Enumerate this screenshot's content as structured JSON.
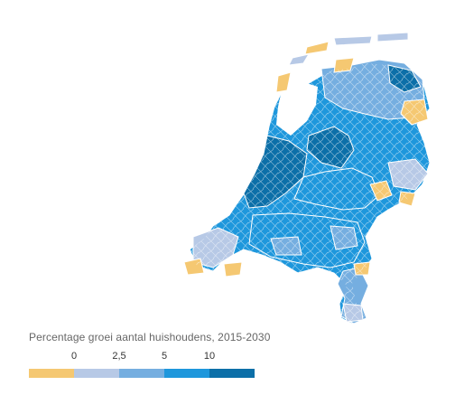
{
  "legend": {
    "title": "Percentage groei aantal huishoudens, 2015-2030",
    "ticks": [
      "0",
      "2,5",
      "5",
      "10"
    ],
    "colors": [
      "#f5c872",
      "#b7c9e6",
      "#75aee0",
      "#1e97dc",
      "#0c6fa8"
    ],
    "bins": [
      {
        "color": "#f5c872",
        "range": "< 0"
      },
      {
        "color": "#b7c9e6",
        "range": "0 – 2,5"
      },
      {
        "color": "#75aee0",
        "range": "2,5 – 5"
      },
      {
        "color": "#1e97dc",
        "range": "5 – 10"
      },
      {
        "color": "#0c6fa8",
        "range": "> 10"
      }
    ]
  },
  "map": {
    "subject": "Netherlands municipalities",
    "outline_color": "#ffffff"
  }
}
